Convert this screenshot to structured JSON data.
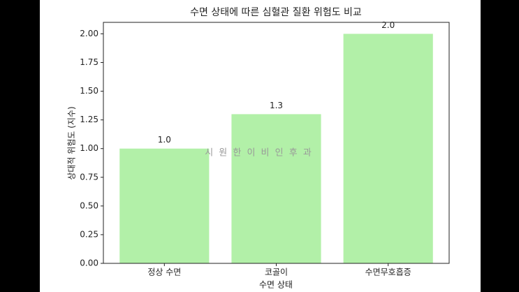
{
  "chart_data": {
    "type": "bar",
    "title": "수면 상태에 따른 심혈관 질환 위험도 비교",
    "xlabel": "수면 상태",
    "ylabel": "상대적 위험도 (지수)",
    "categories": [
      "정상 수면",
      "코골이",
      "수면무호흡증"
    ],
    "values": [
      1.0,
      1.3,
      2.0
    ],
    "value_labels": [
      "1.0",
      "1.3",
      "2.0"
    ],
    "color": "#b2f0a8",
    "ylim": [
      0,
      2.1
    ],
    "yticks": [
      {
        "value": 0,
        "label": "0.00"
      },
      {
        "value": 0.25,
        "label": "0.25"
      },
      {
        "value": 0.5,
        "label": "0.50"
      },
      {
        "value": 0.75,
        "label": "0.75"
      },
      {
        "value": 1,
        "label": "1.00"
      },
      {
        "value": 1.25,
        "label": "1.25"
      },
      {
        "value": 1.5,
        "label": "1.50"
      },
      {
        "value": 1.75,
        "label": "1.75"
      },
      {
        "value": 2,
        "label": "2.00"
      }
    ],
    "watermark": "시 원 한 이 비 인 후 과"
  }
}
